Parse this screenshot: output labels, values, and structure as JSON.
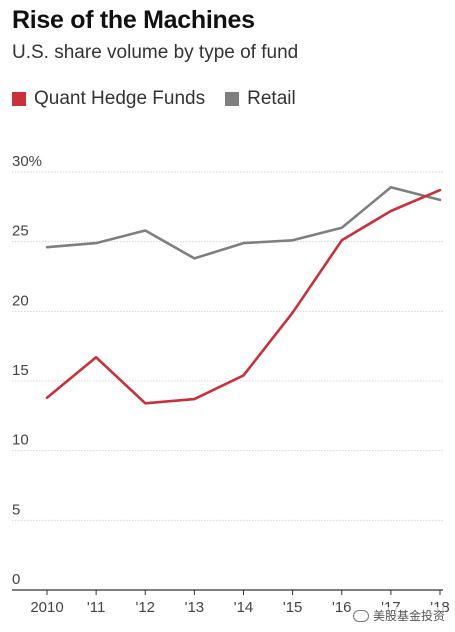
{
  "chart_data": {
    "type": "line",
    "title": "Rise of the Machines",
    "subtitle": "U.S. share volume by type of fund",
    "categories": [
      "2010",
      "'11",
      "'12",
      "'13",
      "'14",
      "'15",
      "'16",
      "'17",
      "'18"
    ],
    "series": [
      {
        "name": "Quant Hedge Funds",
        "color": "#c8303b",
        "values": [
          13.8,
          16.7,
          13.4,
          13.7,
          15.4,
          19.9,
          25.1,
          27.2,
          28.7
        ]
      },
      {
        "name": "Retail",
        "color": "#7f7f7f",
        "values": [
          24.6,
          24.9,
          25.8,
          23.8,
          24.9,
          25.1,
          26.0,
          28.9,
          28.0
        ]
      }
    ],
    "yticks": [
      "0",
      "5",
      "10",
      "15",
      "20",
      "25",
      "30%"
    ],
    "ylim": [
      0,
      30
    ],
    "grid": true,
    "legend": "top-left"
  },
  "watermark": "美股基金投资"
}
